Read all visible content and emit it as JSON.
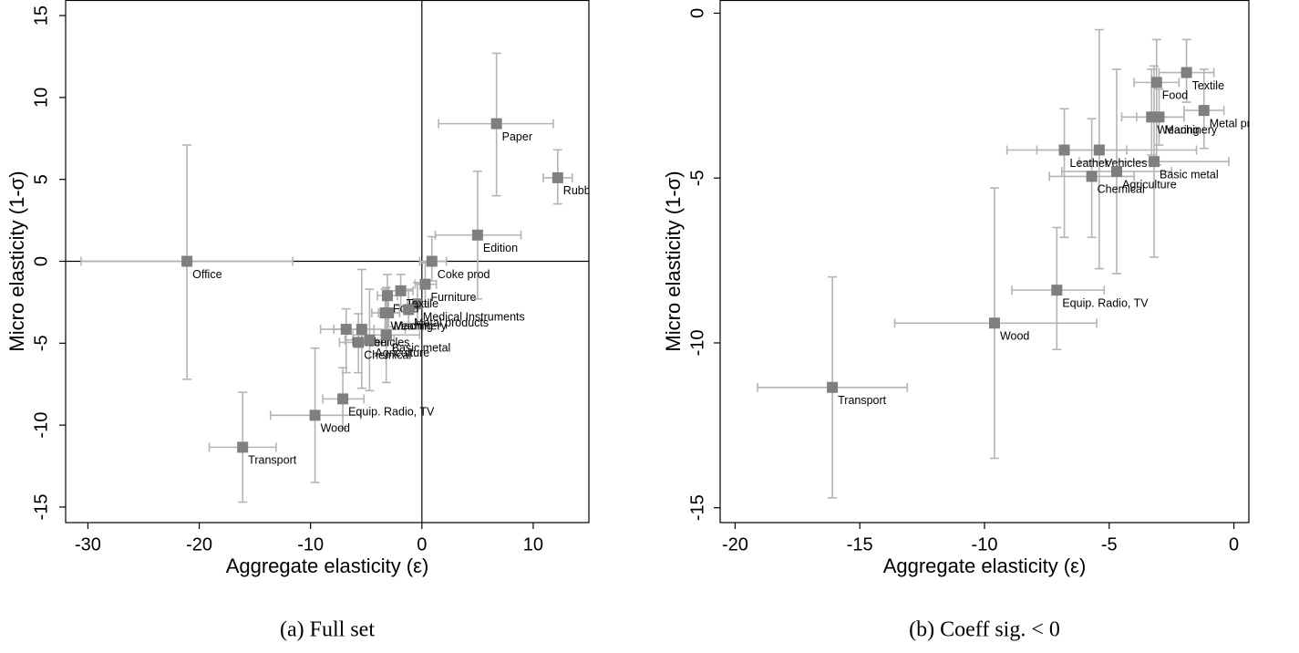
{
  "chart_data": [
    {
      "type": "scatter",
      "caption": "(a) Full set",
      "x_label": "Aggregate elasticity (ε)",
      "y_label": "Micro elasticity (1-σ)",
      "xlim": [
        -32,
        15
      ],
      "ylim": [
        -15.95,
        15.95
      ],
      "xticks": [
        -30,
        -20,
        -10,
        0,
        10
      ],
      "yticks": [
        -15,
        -10,
        -5,
        0,
        5,
        10,
        15
      ],
      "zero_lines": true,
      "marker_color": "#7f7f7f",
      "error_color": "#b4b4b4",
      "labels": [
        "Office",
        "Paper",
        "Rubber",
        "Edition",
        "Coke prod",
        "Furniture",
        "Medical Instruments",
        "Textile",
        "Food",
        "Metal products",
        "Machinery",
        "Wearing",
        "Leather",
        "Vehicles",
        "Chemical",
        "Agriculture",
        "Basic metal",
        "Equip. Radio, TV",
        "Wood",
        "Transport"
      ],
      "x": [
        -21.1,
        6.7,
        12.2,
        5.0,
        0.9,
        0.3,
        -0.4,
        -1.9,
        -3.1,
        -1.2,
        -3.0,
        -3.3,
        -6.8,
        -5.4,
        -5.7,
        -4.7,
        -3.2,
        -7.1,
        -9.6,
        -16.1
      ],
      "y": [
        0.0,
        8.4,
        5.1,
        1.6,
        0.0,
        -1.4,
        -2.6,
        -1.8,
        -2.1,
        -2.95,
        -3.15,
        -3.15,
        -4.15,
        -4.15,
        -4.95,
        -4.8,
        -4.5,
        -8.4,
        -9.4,
        -11.35
      ],
      "x_lower": [
        -30.6,
        1.5,
        10.9,
        1.2,
        -0.2,
        -0.6,
        -1.3,
        -3.0,
        -4.0,
        -2.0,
        -3.9,
        -4.5,
        -9.1,
        -7.9,
        -7.4,
        -6.9,
        -6.2,
        -8.9,
        -13.6,
        -19.1
      ],
      "x_upper": [
        -11.6,
        11.8,
        13.5,
        8.9,
        2.2,
        1.3,
        0.6,
        -0.8,
        -2.2,
        -0.4,
        -2.0,
        -2.0,
        -4.3,
        -1.5,
        -4.0,
        -2.5,
        -0.2,
        -5.2,
        -5.5,
        -13.1
      ],
      "y_lower": [
        -7.2,
        4.0,
        3.5,
        -2.3,
        -1.2,
        -2.8,
        -3.8,
        -2.7,
        -4.6,
        -4.1,
        -4.0,
        -4.3,
        -6.8,
        -7.75,
        -6.8,
        -7.9,
        -7.4,
        -10.2,
        -13.5,
        -14.7
      ],
      "y_upper": [
        7.1,
        12.7,
        6.8,
        5.5,
        1.5,
        -0.1,
        -1.3,
        -0.8,
        -0.8,
        -1.7,
        -2.3,
        -1.7,
        -2.9,
        -0.5,
        -3.2,
        -1.7,
        -1.6,
        -6.5,
        -5.3,
        -8.0
      ]
    },
    {
      "type": "scatter",
      "caption": "(b) Coeff sig. < 0",
      "x_label": "Aggregate elasticity (ε)",
      "y_label": "Micro elasticity (1-σ)",
      "xlim": [
        -20.6,
        0.6
      ],
      "ylim": [
        -15.45,
        0.4
      ],
      "xticks": [
        -20,
        -15,
        -10,
        -5,
        0
      ],
      "yticks": [
        -15,
        -10,
        -5,
        0
      ],
      "zero_lines": false,
      "marker_color": "#7f7f7f",
      "error_color": "#b4b4b4",
      "labels": [
        "Textile",
        "Food",
        "Metal products",
        "Machinery",
        "Wearing",
        "Leather",
        "Vehicles",
        "Chemical",
        "Agriculture",
        "Basic metal",
        "Equip. Radio, TV",
        "Wood",
        "Transport"
      ],
      "x": [
        -1.9,
        -3.1,
        -1.2,
        -3.0,
        -3.3,
        -6.8,
        -5.4,
        -5.7,
        -4.7,
        -3.2,
        -7.1,
        -9.6,
        -16.1
      ],
      "y": [
        -1.8,
        -2.1,
        -2.95,
        -3.15,
        -3.15,
        -4.15,
        -4.15,
        -4.95,
        -4.8,
        -4.5,
        -8.4,
        -9.4,
        -11.35
      ],
      "x_lower": [
        -3.0,
        -4.0,
        -2.0,
        -3.9,
        -4.5,
        -9.1,
        -7.9,
        -7.4,
        -6.9,
        -6.2,
        -8.9,
        -13.6,
        -19.1
      ],
      "x_upper": [
        -0.8,
        -2.2,
        -0.4,
        -2.0,
        -2.0,
        -4.3,
        -1.5,
        -4.0,
        -2.5,
        -0.2,
        -5.2,
        -5.5,
        -13.1
      ],
      "y_lower": [
        -2.7,
        -4.6,
        -4.1,
        -4.0,
        -4.3,
        -6.8,
        -7.75,
        -6.8,
        -7.9,
        -7.4,
        -10.2,
        -13.5,
        -14.7
      ],
      "y_upper": [
        -0.8,
        -0.8,
        -1.7,
        -2.3,
        -1.7,
        -2.9,
        -0.5,
        -3.2,
        -1.7,
        -1.6,
        -6.5,
        -5.3,
        -8.0
      ]
    }
  ]
}
